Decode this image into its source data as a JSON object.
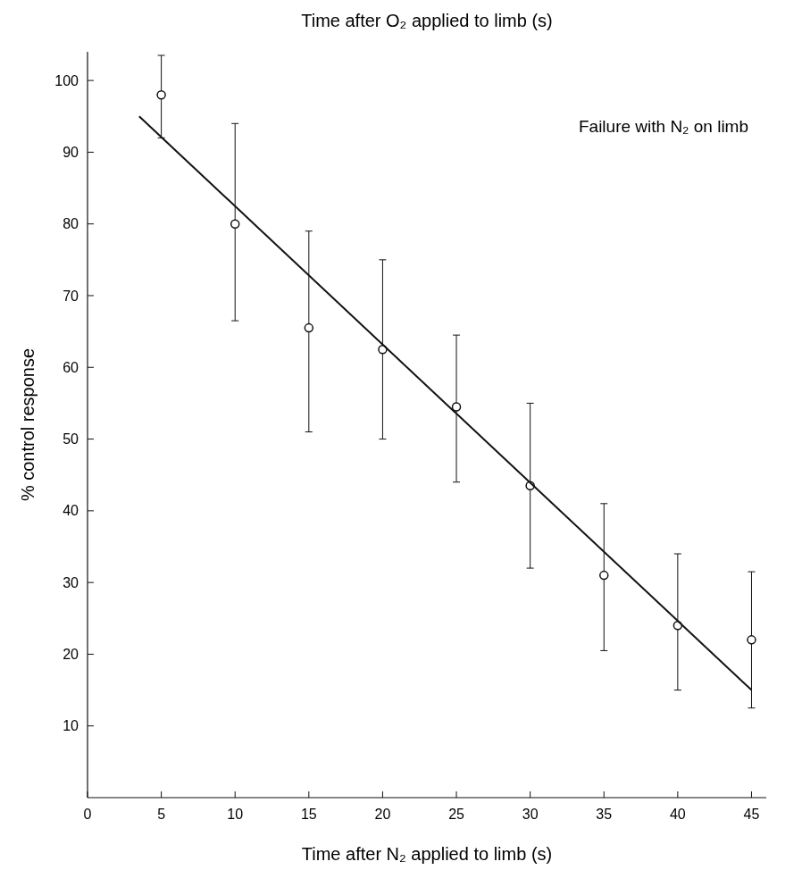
{
  "chart_data": {
    "type": "scatter",
    "title": "Time after O₂ applied to limb (s)",
    "xlabel": "Time after N₂ applied to limb (s)",
    "ylabel": "% control response",
    "annotations": [
      "Failure with N₂ on limb"
    ],
    "xlim": [
      0,
      46
    ],
    "ylim": [
      0,
      104
    ],
    "xticks": [
      0,
      5,
      10,
      15,
      20,
      25,
      30,
      35,
      40,
      45
    ],
    "yticks": [
      10,
      20,
      30,
      40,
      50,
      60,
      70,
      80,
      90,
      100
    ],
    "marker": "circle",
    "grid": false,
    "series": [
      {
        "color": "#111111",
        "x": [
          5,
          10,
          15,
          20,
          25,
          30,
          35,
          40,
          45
        ],
        "values": [
          98,
          80,
          65.5,
          62.5,
          54.5,
          43.5,
          31,
          24,
          22
        ],
        "errors": [
          [
            92,
            103.5
          ],
          [
            66.5,
            94
          ],
          [
            51,
            79
          ],
          [
            50,
            75
          ],
          [
            44,
            64.5
          ],
          [
            32,
            55
          ],
          [
            20.5,
            41
          ],
          [
            15,
            34
          ],
          [
            12.5,
            31.5
          ]
        ]
      },
      {
        "type": "line",
        "color": "#111111",
        "line_style": "solid",
        "marker": "none",
        "x": [
          3.5,
          45
        ],
        "values": [
          95,
          15
        ]
      }
    ]
  }
}
